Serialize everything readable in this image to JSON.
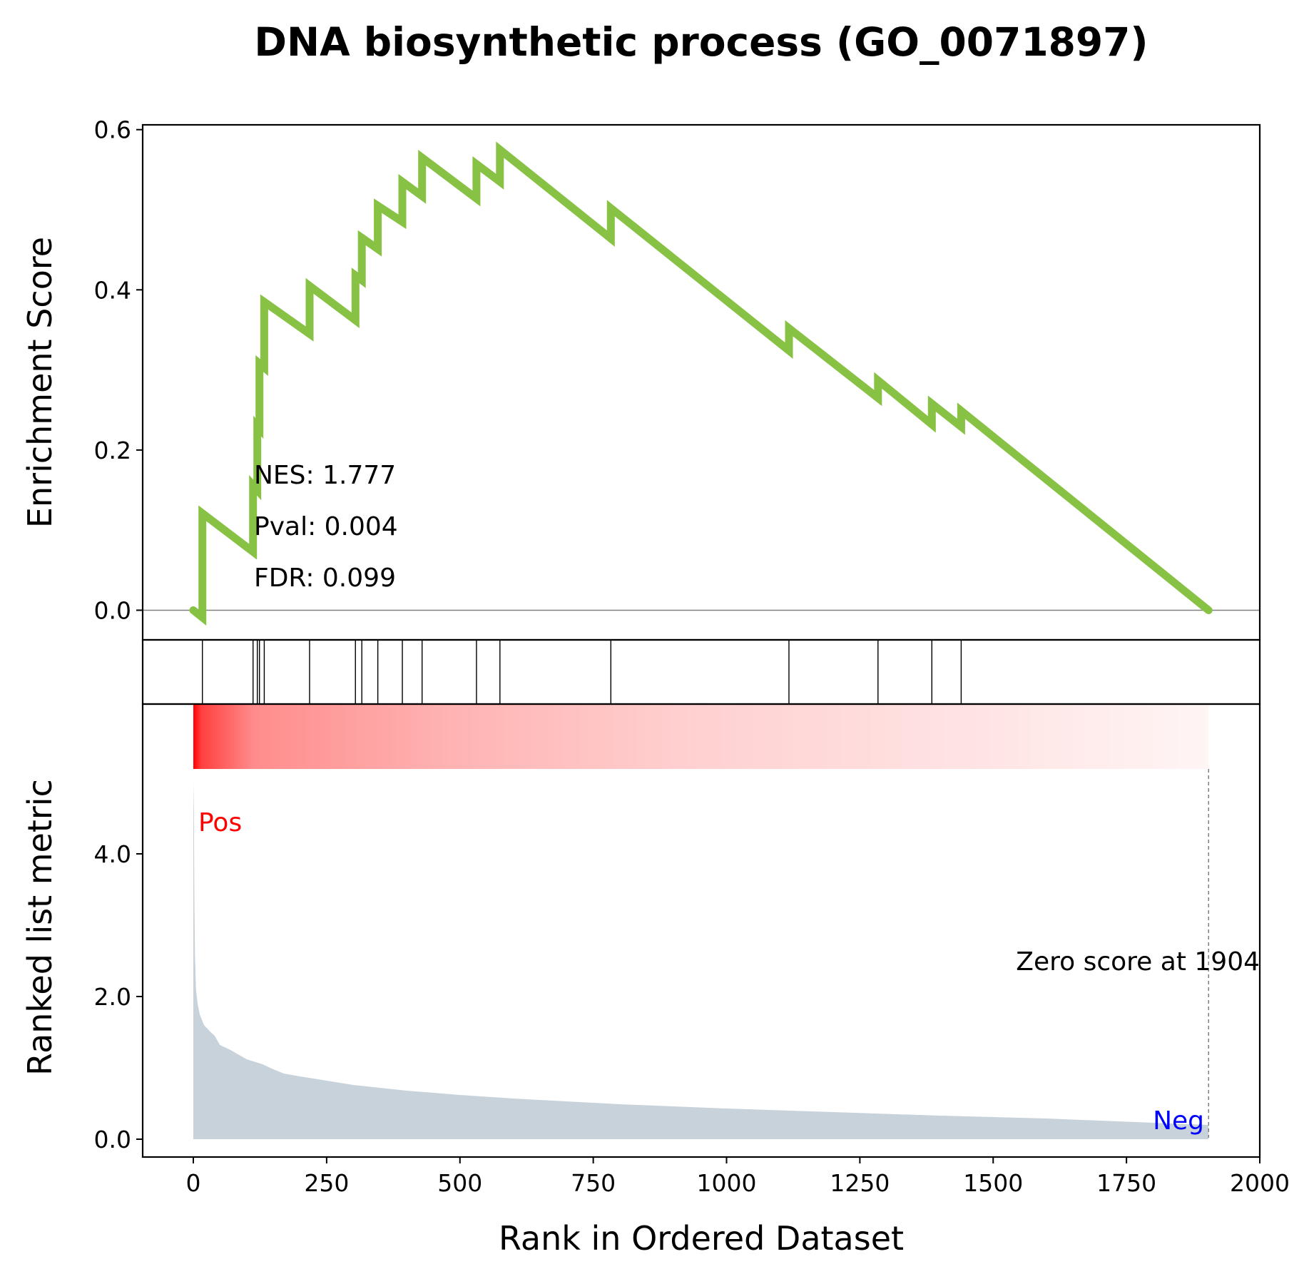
{
  "chart_data": {
    "type": "line",
    "title": "DNA biosynthetic process (GO_0071897)",
    "xlabel": "Rank in Ordered Dataset",
    "xlim": [
      -95,
      2000
    ],
    "xticks": [
      0,
      250,
      500,
      750,
      1000,
      1250,
      1500,
      1750,
      2000
    ],
    "enrichment_panel": {
      "ylabel": "Enrichment Score",
      "ylim": [
        -0.037,
        0.606
      ],
      "yticks": [
        "0.0",
        "0.2",
        "0.4",
        "0.6"
      ],
      "color": "#88c244",
      "series": [
        {
          "x": [
            0,
            17,
            17,
            112,
            112,
            120,
            120,
            124,
            124,
            133,
            133,
            218,
            218,
            304,
            304,
            316,
            316,
            346,
            346,
            392,
            392,
            429,
            429,
            531,
            531,
            575,
            575,
            783,
            783,
            1117,
            1117,
            1284,
            1284,
            1385,
            1385,
            1440,
            1440,
            1904
          ],
          "y": [
            0.0,
            -0.009,
            0.121,
            0.073,
            0.156,
            0.15,
            0.23,
            0.227,
            0.308,
            0.303,
            0.385,
            0.345,
            0.405,
            0.362,
            0.418,
            0.412,
            0.465,
            0.451,
            0.505,
            0.485,
            0.535,
            0.517,
            0.565,
            0.514,
            0.557,
            0.535,
            0.575,
            0.464,
            0.502,
            0.324,
            0.352,
            0.265,
            0.287,
            0.232,
            0.258,
            0.229,
            0.249,
            0.0
          ]
        }
      ],
      "annotations": {
        "nes": "NES: 1.777",
        "pval": "Pval: 0.004",
        "fdr": "FDR: 0.099"
      }
    },
    "hits_panel": {
      "hit_ranks": [
        17,
        112,
        120,
        124,
        133,
        218,
        304,
        316,
        346,
        392,
        429,
        531,
        575,
        783,
        1117,
        1284,
        1385,
        1440
      ]
    },
    "ranked_metric_panel": {
      "ylabel": "Ranked list metric",
      "ylim": [
        -0.25,
        5.0
      ],
      "yticks": [
        "0.0",
        "2.0",
        "4.0"
      ],
      "fill_color": "#c8d2da",
      "gradient_color": "#ff0000",
      "pos_label": "Pos",
      "neg_label": "Neg",
      "pos_color": "#ff0000",
      "neg_color": "#0000ff",
      "zero_score_label": "Zero score at 1904",
      "zero_rank": 1904,
      "x": [
        0,
        1,
        2,
        3,
        5,
        8,
        12,
        20,
        30,
        40,
        50,
        70,
        100,
        130,
        150,
        170,
        200,
        250,
        300,
        400,
        500,
        600,
        700,
        800,
        900,
        1000,
        1200,
        1400,
        1600,
        1800,
        1904
      ],
      "values": [
        5.0,
        4.6,
        3.3,
        2.6,
        2.1,
        1.9,
        1.75,
        1.6,
        1.52,
        1.45,
        1.32,
        1.25,
        1.12,
        1.05,
        0.98,
        0.92,
        0.88,
        0.82,
        0.76,
        0.68,
        0.62,
        0.57,
        0.53,
        0.49,
        0.46,
        0.43,
        0.38,
        0.33,
        0.29,
        0.23,
        0.2
      ]
    }
  }
}
